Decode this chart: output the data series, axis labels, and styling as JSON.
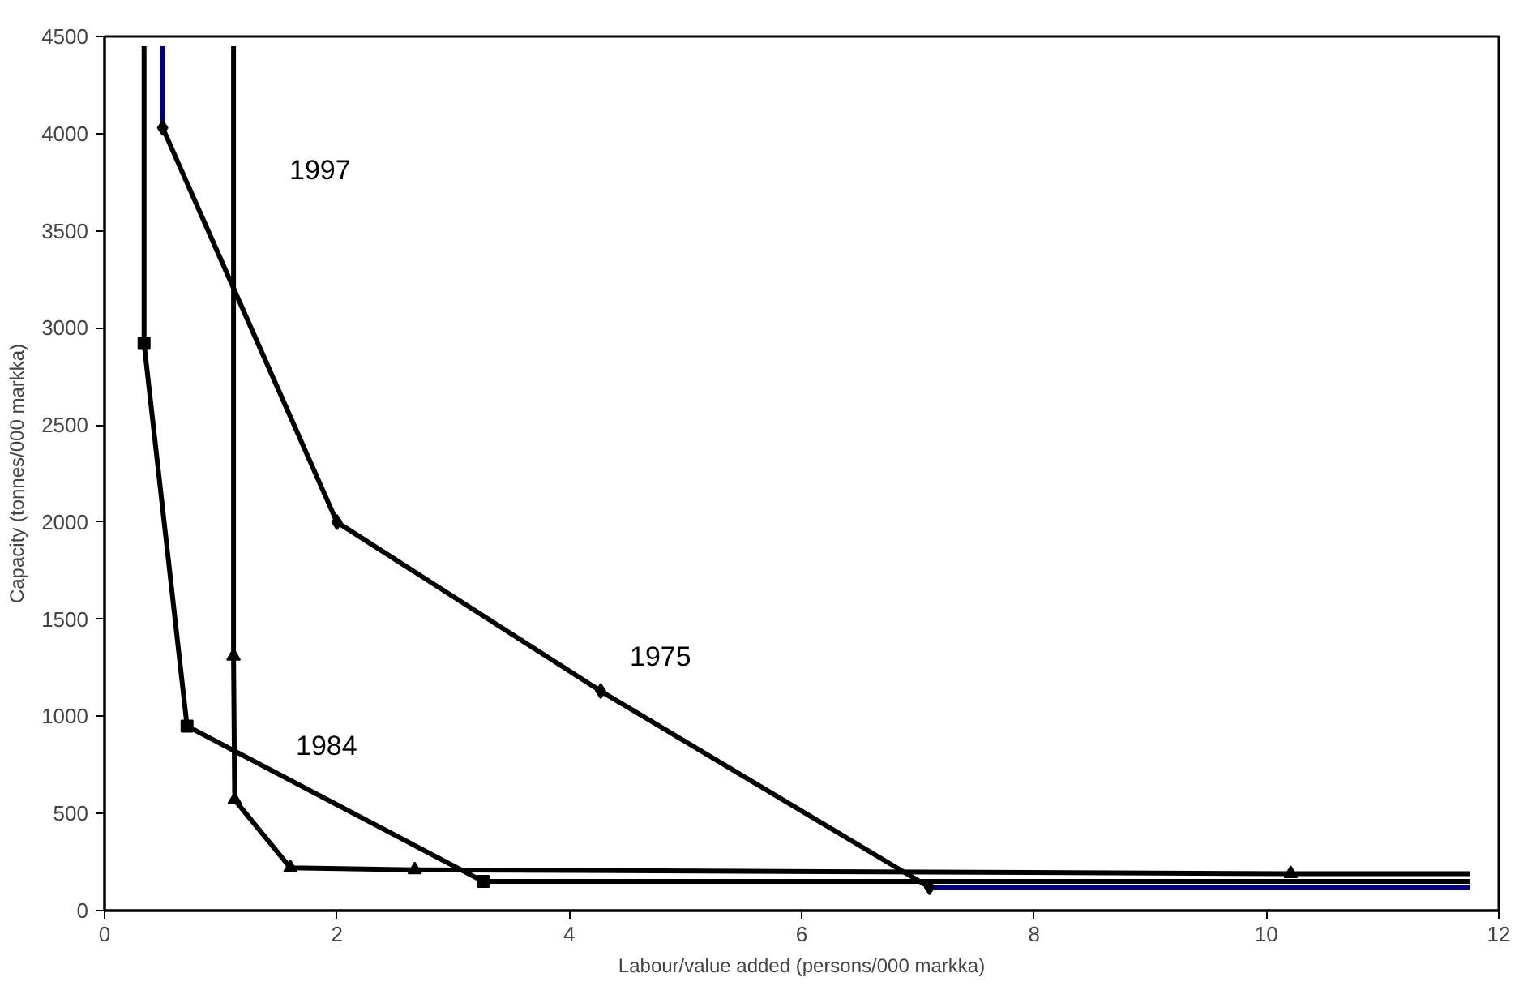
{
  "chart_data": {
    "type": "line",
    "xlabel": "Labour/value added (persons/000 markka)",
    "ylabel": "Capacity (tonnes/000 markka)",
    "xlim": [
      0,
      12
    ],
    "ylim": [
      0,
      4500
    ],
    "xticks": [
      0,
      2,
      4,
      6,
      8,
      10,
      12
    ],
    "yticks": [
      0,
      500,
      1000,
      1500,
      2000,
      2500,
      3000,
      3500,
      4000,
      4500
    ],
    "grid": false,
    "line_style": "solid",
    "series": [
      {
        "color": "#000080",
        "x": [
          0.5,
          0.5
        ],
        "values": [
          4450,
          4030
        ]
      },
      {
        "color": "#000080",
        "x": [
          7.1,
          11.75
        ],
        "values": [
          120,
          120
        ]
      },
      {
        "color": "#000000",
        "marker": "diamond",
        "x": [
          0.5,
          2.0,
          4.27,
          7.1
        ],
        "values": [
          4030,
          2000,
          1130,
          120
        ]
      },
      {
        "color": "#000000",
        "x": [
          0.34,
          0.34
        ],
        "values": [
          4450,
          2920
        ]
      },
      {
        "color": "#000000",
        "marker": "square",
        "x": [
          0.34,
          0.71,
          3.26
        ],
        "values": [
          2920,
          950,
          150
        ]
      },
      {
        "color": "#000000",
        "x": [
          3.26,
          11.75
        ],
        "values": [
          150,
          150
        ]
      },
      {
        "color": "#000000",
        "x": [
          1.11,
          1.11
        ],
        "values": [
          4450,
          1310
        ]
      },
      {
        "color": "#000000",
        "marker": "triangle",
        "x": [
          1.11,
          1.12,
          1.6,
          2.67,
          10.21
        ],
        "values": [
          1310,
          570,
          220,
          210,
          190
        ]
      },
      {
        "color": "#000000",
        "x": [
          10.21,
          11.75
        ],
        "values": [
          190,
          190
        ]
      }
    ],
    "annotations": [
      "1997",
      "1975",
      "1984"
    ]
  }
}
